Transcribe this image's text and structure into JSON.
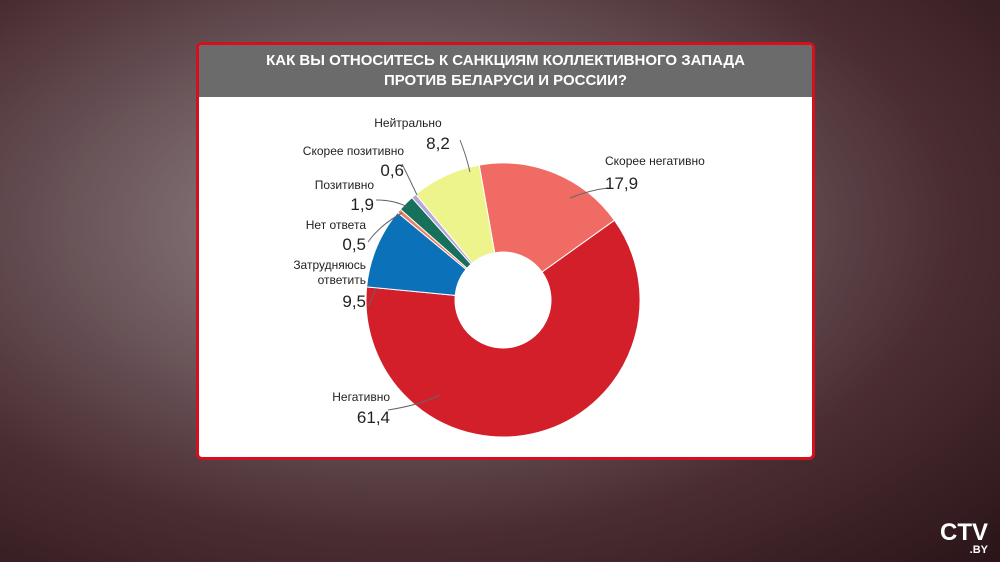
{
  "chart_data": {
    "type": "donut",
    "title": "КАК ВЫ ОТНОСИТЕСЬ К САНКЦИЯМ КОЛЛЕКТИВНОГО ЗАПАДА ПРОТИВ БЕЛАРУСИ И РОССИИ?",
    "categories": [
      "Скорее негативно",
      "Негативно",
      "Затрудняюсь ответить",
      "Нет ответа",
      "Позитивно",
      "Скорее позитивно",
      "Нейтрально"
    ],
    "values": [
      17.9,
      61.4,
      9.5,
      0.5,
      1.9,
      0.6,
      8.2
    ],
    "value_labels": [
      "17,9",
      "61,4",
      "9,5",
      "0,5",
      "1,9",
      "0,6",
      "8,2"
    ],
    "colors": [
      "#f06b63",
      "#d21f2a",
      "#0b72b9",
      "#e8826a",
      "#17705c",
      "#b5a6dc",
      "#eef48c"
    ]
  },
  "logo": {
    "name": "CTV",
    "suffix": ".BY"
  }
}
